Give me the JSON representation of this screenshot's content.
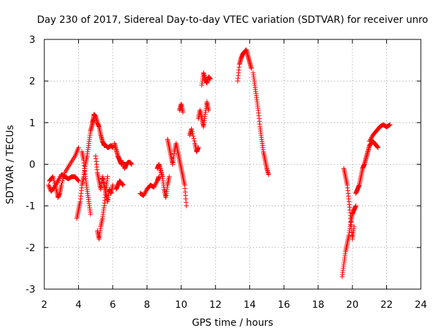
{
  "chart_data": {
    "type": "scatter",
    "title": "Day 230 of 2017, Sidereal Day-to-day VTEC variation (SDTVAR) for receiver unro",
    "xlabel": "GPS time / hours",
    "ylabel": "SDTVAR / TECUs",
    "xlim": [
      2,
      24
    ],
    "ylim": [
      -3,
      3
    ],
    "xticks": [
      2,
      4,
      6,
      8,
      10,
      12,
      14,
      16,
      18,
      20,
      22,
      24
    ],
    "xtick_labels": [
      "2",
      "4",
      "6",
      "8",
      "10",
      "12",
      "14",
      "16",
      "18",
      "20",
      "22",
      "24"
    ],
    "yticks": [
      -3,
      -2,
      -1,
      0,
      1,
      2,
      3
    ],
    "ytick_labels": [
      "-3",
      "-2",
      "-1",
      "0",
      "1",
      "2",
      "3"
    ],
    "grid": true,
    "marker": "plus",
    "color": "#ff0000",
    "series": [
      {
        "name": "SDTVAR",
        "segments": [
          [
            [
              2.25,
              -0.5
            ],
            [
              2.4,
              -0.65
            ],
            [
              2.6,
              -0.55
            ],
            [
              2.8,
              -0.4
            ],
            [
              3.0,
              -0.25
            ],
            [
              3.2,
              -0.3
            ],
            [
              3.4,
              -0.35
            ],
            [
              3.6,
              -0.3
            ],
            [
              3.8,
              -0.3
            ],
            [
              4.0,
              -0.4
            ]
          ],
          [
            [
              2.3,
              -0.4
            ],
            [
              2.5,
              -0.3
            ],
            [
              2.7,
              -0.6
            ],
            [
              2.8,
              -0.8
            ],
            [
              2.9,
              -0.7
            ],
            [
              3.0,
              -0.5
            ],
            [
              3.2,
              -0.2
            ],
            [
              3.5,
              0.0
            ],
            [
              3.8,
              0.2
            ],
            [
              4.0,
              0.4
            ]
          ],
          [
            [
              3.9,
              -1.3
            ],
            [
              4.0,
              -1.1
            ],
            [
              4.1,
              -0.9
            ],
            [
              4.2,
              -0.5
            ],
            [
              4.3,
              -0.3
            ],
            [
              4.4,
              0.0
            ],
            [
              4.5,
              0.2
            ],
            [
              4.6,
              0.5
            ],
            [
              4.7,
              0.8
            ],
            [
              4.8,
              0.95
            ],
            [
              4.9,
              1.1
            ]
          ],
          [
            [
              4.2,
              0.3
            ],
            [
              4.3,
              0.1
            ],
            [
              4.4,
              -0.3
            ],
            [
              4.5,
              -0.6
            ],
            [
              4.6,
              -0.9
            ],
            [
              4.7,
              -1.2
            ]
          ],
          [
            [
              4.8,
              1.0
            ],
            [
              4.9,
              1.2
            ],
            [
              5.0,
              1.15
            ],
            [
              5.1,
              1.0
            ],
            [
              5.2,
              0.9
            ],
            [
              5.3,
              0.7
            ],
            [
              5.4,
              0.55
            ],
            [
              5.5,
              0.45
            ],
            [
              5.6,
              0.45
            ],
            [
              5.7,
              0.4
            ],
            [
              5.8,
              0.42
            ],
            [
              5.9,
              0.45
            ],
            [
              6.0,
              0.4
            ]
          ],
          [
            [
              5.0,
              0.2
            ],
            [
              5.1,
              -0.2
            ],
            [
              5.2,
              -0.4
            ],
            [
              5.3,
              -0.6
            ],
            [
              5.4,
              -0.3
            ],
            [
              5.5,
              -0.5
            ],
            [
              5.6,
              -0.7
            ],
            [
              5.7,
              -0.9
            ],
            [
              5.8,
              -0.6
            ],
            [
              5.9,
              -0.7
            ],
            [
              6.0,
              -0.5
            ]
          ],
          [
            [
              5.1,
              -1.6
            ],
            [
              5.2,
              -1.8
            ],
            [
              5.3,
              -1.5
            ],
            [
              5.4,
              -1.3
            ],
            [
              5.5,
              -1.0
            ],
            [
              5.6,
              -0.6
            ],
            [
              5.7,
              -0.3
            ]
          ],
          [
            [
              6.1,
              0.5
            ],
            [
              6.2,
              0.35
            ],
            [
              6.3,
              0.2
            ],
            [
              6.4,
              0.1
            ],
            [
              6.5,
              0.0
            ],
            [
              6.6,
              0.05
            ],
            [
              6.7,
              -0.1
            ],
            [
              6.8,
              0.0
            ],
            [
              6.9,
              0.05
            ],
            [
              7.0,
              0.05
            ],
            [
              7.1,
              0.0
            ]
          ],
          [
            [
              6.2,
              -0.6
            ],
            [
              6.3,
              -0.5
            ],
            [
              6.4,
              -0.4
            ],
            [
              6.5,
              -0.45
            ],
            [
              6.6,
              -0.5
            ]
          ],
          [
            [
              7.6,
              -0.7
            ],
            [
              7.8,
              -0.75
            ],
            [
              8.0,
              -0.6
            ],
            [
              8.2,
              -0.5
            ],
            [
              8.4,
              -0.55
            ],
            [
              8.6,
              -0.4
            ],
            [
              8.7,
              -0.3
            ]
          ],
          [
            [
              8.6,
              -0.1
            ],
            [
              8.7,
              0.0
            ],
            [
              8.8,
              -0.15
            ],
            [
              8.9,
              -0.3
            ],
            [
              9.0,
              -0.6
            ],
            [
              9.1,
              -0.8
            ],
            [
              9.2,
              -0.5
            ],
            [
              9.3,
              -0.3
            ]
          ],
          [
            [
              9.2,
              0.6
            ],
            [
              9.3,
              0.4
            ],
            [
              9.4,
              0.2
            ],
            [
              9.5,
              0.0
            ],
            [
              9.6,
              0.3
            ],
            [
              9.7,
              0.5
            ],
            [
              9.8,
              0.3
            ],
            [
              9.9,
              0.1
            ],
            [
              10.0,
              -0.1
            ],
            [
              10.1,
              -0.3
            ],
            [
              10.2,
              -0.5
            ],
            [
              10.3,
              -1.0
            ]
          ],
          [
            [
              9.9,
              1.3
            ],
            [
              10.0,
              1.45
            ],
            [
              10.1,
              1.25
            ]
          ],
          [
            [
              10.5,
              0.7
            ],
            [
              10.6,
              0.85
            ],
            [
              10.8,
              0.5
            ],
            [
              10.9,
              0.3
            ],
            [
              11.0,
              0.4
            ]
          ],
          [
            [
              11.0,
              1.1
            ],
            [
              11.1,
              1.3
            ],
            [
              11.2,
              1.1
            ],
            [
              11.3,
              0.9
            ],
            [
              11.4,
              1.2
            ],
            [
              11.5,
              1.5
            ],
            [
              11.6,
              1.3
            ]
          ],
          [
            [
              11.2,
              1.9
            ],
            [
              11.3,
              2.2
            ],
            [
              11.4,
              2.05
            ],
            [
              11.5,
              1.95
            ],
            [
              11.6,
              2.1
            ],
            [
              11.7,
              2.05
            ]
          ],
          [
            [
              13.3,
              2.0
            ],
            [
              13.4,
              2.4
            ],
            [
              13.5,
              2.55
            ],
            [
              13.6,
              2.65
            ],
            [
              13.7,
              2.7
            ],
            [
              13.8,
              2.75
            ],
            [
              13.9,
              2.6
            ],
            [
              14.0,
              2.45
            ],
            [
              14.1,
              2.3
            ]
          ],
          [
            [
              14.2,
              2.2
            ],
            [
              14.3,
              1.9
            ],
            [
              14.4,
              1.6
            ],
            [
              14.5,
              1.3
            ],
            [
              14.6,
              0.9
            ],
            [
              14.7,
              0.6
            ],
            [
              14.8,
              0.3
            ],
            [
              14.9,
              0.1
            ],
            [
              15.0,
              -0.1
            ],
            [
              15.1,
              -0.25
            ]
          ],
          [
            [
              19.4,
              -2.7
            ],
            [
              19.5,
              -2.4
            ],
            [
              19.6,
              -2.1
            ],
            [
              19.7,
              -1.9
            ],
            [
              19.8,
              -1.7
            ],
            [
              19.9,
              -1.4
            ],
            [
              20.0,
              -1.2
            ],
            [
              20.1,
              -1.1
            ],
            [
              20.2,
              -1.0
            ]
          ],
          [
            [
              19.5,
              -0.1
            ],
            [
              19.6,
              -0.3
            ],
            [
              19.7,
              -0.5
            ],
            [
              19.8,
              -0.9
            ],
            [
              19.9,
              -1.3
            ],
            [
              20.0,
              -1.8
            ],
            [
              20.1,
              -1.5
            ]
          ],
          [
            [
              20.2,
              -0.7
            ],
            [
              20.3,
              -0.6
            ],
            [
              20.4,
              -0.5
            ],
            [
              20.5,
              -0.3
            ],
            [
              20.6,
              -0.1
            ],
            [
              20.7,
              0.0
            ],
            [
              20.8,
              0.15
            ],
            [
              20.9,
              0.3
            ],
            [
              21.0,
              0.45
            ],
            [
              21.1,
              0.5
            ],
            [
              21.2,
              0.55
            ],
            [
              21.3,
              0.5
            ],
            [
              21.4,
              0.45
            ],
            [
              21.5,
              0.4
            ]
          ],
          [
            [
              21.0,
              0.55
            ],
            [
              21.2,
              0.7
            ],
            [
              21.4,
              0.8
            ],
            [
              21.6,
              0.9
            ],
            [
              21.8,
              0.95
            ],
            [
              22.0,
              0.9
            ],
            [
              22.2,
              0.95
            ]
          ]
        ]
      }
    ]
  }
}
